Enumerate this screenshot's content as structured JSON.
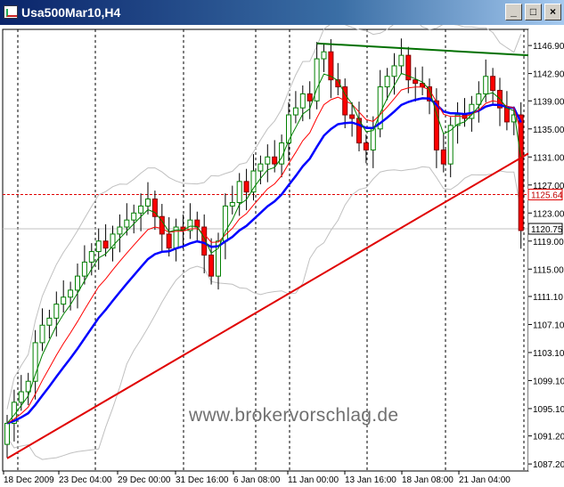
{
  "window": {
    "title": "Usa500Mar10,H4",
    "minimize_glyph": "_",
    "maximize_glyph": "□",
    "close_glyph": "×"
  },
  "watermark": "www.brokervorschlag.de",
  "colors": {
    "ma_fast": "#008000",
    "ma_mid": "#ff0000",
    "ma_slow": "#0000ff",
    "trend_up": "#e00000",
    "trend_top": "#007000",
    "band": "#c0c0c0",
    "bull": "#008000",
    "bear": "#ff0000"
  },
  "chart_data": {
    "type": "candlestick",
    "symbol": "Usa500Mar10",
    "timeframe": "H4",
    "ylim": [
      1086.2,
      1149.2
    ],
    "y_ticks": [
      "1146.90",
      "1142.90",
      "1139.00",
      "1135.00",
      "1131.00",
      "1127.00",
      "1123.00",
      "1119.00",
      "1115.00",
      "1111.10",
      "1107.10",
      "1103.10",
      "1099.10",
      "1095.10",
      "1091.20",
      "1087.20"
    ],
    "x_labels": [
      "18 Dec 2009",
      "23 Dec 04:00",
      "29 Dec 00:00",
      "31 Dec 16:00",
      "6 Jan 08:00",
      "11 Jan 00:00",
      "13 Jan 16:00",
      "18 Jan 08:00",
      "21 Jan 04:00"
    ],
    "price_labels": [
      {
        "label": "1125.64",
        "value": 1125.64
      },
      {
        "label": "1120.75",
        "value": 1120.75
      }
    ],
    "hline": 1125.64,
    "bars": 74,
    "closes": [
      1093.0,
      1096.0,
      1097.5,
      1099.0,
      1104.5,
      1107.0,
      1108.0,
      1110.0,
      1111.0,
      1112.0,
      1114.0,
      1116.0,
      1117.5,
      1119.0,
      1118.0,
      1120.0,
      1121.0,
      1122.0,
      1123.0,
      1124.0,
      1125.0,
      1122.5,
      1120.0,
      1118.0,
      1121.0,
      1120.5,
      1122.0,
      1121.0,
      1117.0,
      1114.0,
      1119.0,
      1124.0,
      1124.5,
      1127.5,
      1126.0,
      1129.0,
      1130.0,
      1131.0,
      1130.0,
      1133.0,
      1137.0,
      1138.0,
      1140.0,
      1139.0,
      1145.0,
      1146.0,
      1142.0,
      1141.0,
      1137.0,
      1136.5,
      1133.0,
      1132.0,
      1135.0,
      1141.0,
      1142.5,
      1144.0,
      1145.5,
      1142.0,
      1141.5,
      1141.0,
      1139.0,
      1132.0,
      1130.0,
      1135.5,
      1137.0,
      1136.5,
      1138.5,
      1140.0,
      1142.5,
      1140.5,
      1138.0,
      1136.0,
      1137.0,
      1120.5
    ],
    "trend_lines": [
      {
        "name": "",
        "from": [
          0,
          1088.0
        ],
        "to": [
          79,
          1131.5
        ]
      },
      {
        "name": "",
        "from": [
          44,
          1147.2
        ],
        "to": [
          79,
          1145.5
        ]
      }
    ],
    "indicators": [
      "moving average fast",
      "moving average medium",
      "moving average slow",
      "bollinger bands"
    ],
    "grid": true
  }
}
